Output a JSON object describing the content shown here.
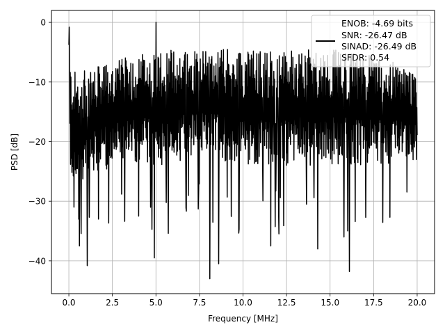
{
  "chart_data": {
    "type": "line",
    "xlabel": "Frequency [MHz]",
    "ylabel": "PSD [dB]",
    "xlim": [
      -1.0,
      21.0
    ],
    "ylim": [
      -45.5,
      2.0
    ],
    "x_ticks": [
      0.0,
      2.5,
      5.0,
      7.5,
      10.0,
      12.5,
      15.0,
      17.5,
      20.0
    ],
    "x_tick_labels": [
      "0.0",
      "2.5",
      "5.0",
      "7.5",
      "10.0",
      "12.5",
      "15.0",
      "17.5",
      "20.0"
    ],
    "y_ticks": [
      0,
      -10,
      -20,
      -30,
      -40
    ],
    "y_tick_labels": [
      "0",
      "−10",
      "−20",
      "−30",
      "−40"
    ],
    "grid": true,
    "legend_position": "top-right",
    "legend_entries": [
      "ENOB: -4.69 bits",
      "SNR: -26.47 dB",
      "SINAD: -26.49 dB",
      "SFDR: 0.54"
    ],
    "series": [
      {
        "color": "#000000",
        "x_range": [
          0.0,
          20.0
        ],
        "num_points": 1024,
        "envelope": [
          {
            "x": 0.0,
            "upper": -1.0,
            "lower": -20.0
          },
          {
            "x": 0.1,
            "upper": -7.5,
            "lower": -26.0
          },
          {
            "x": 0.5,
            "upper": -8.5,
            "lower": -27.0
          },
          {
            "x": 1.0,
            "upper": -8.0,
            "lower": -27.0
          },
          {
            "x": 2.5,
            "upper": -6.5,
            "lower": -24.0
          },
          {
            "x": 5.0,
            "upper": -4.5,
            "lower": -24.0
          },
          {
            "x": 7.5,
            "upper": -4.0,
            "lower": -23.0
          },
          {
            "x": 10.0,
            "upper": -4.5,
            "lower": -24.0
          },
          {
            "x": 12.5,
            "upper": -4.5,
            "lower": -24.0
          },
          {
            "x": 15.0,
            "upper": -4.5,
            "lower": -24.0
          },
          {
            "x": 17.5,
            "upper": -5.5,
            "lower": -24.0
          },
          {
            "x": 20.0,
            "upper": -8.0,
            "lower": -23.0
          }
        ],
        "notable_points": [
          {
            "x": 0.02,
            "y": -0.8
          },
          {
            "x": 0.3,
            "y": -31.0
          },
          {
            "x": 0.6,
            "y": -37.5
          },
          {
            "x": 1.05,
            "y": -40.8
          },
          {
            "x": 1.7,
            "y": -33.0
          },
          {
            "x": 4.9,
            "y": -39.5
          },
          {
            "x": 5.0,
            "y": 0.0
          },
          {
            "x": 8.1,
            "y": -43.0
          },
          {
            "x": 8.6,
            "y": -40.5
          },
          {
            "x": 11.6,
            "y": -37.5
          },
          {
            "x": 14.3,
            "y": -38.0
          },
          {
            "x": 15.8,
            "y": -36.0
          },
          {
            "x": 16.1,
            "y": -41.8
          }
        ]
      }
    ]
  }
}
